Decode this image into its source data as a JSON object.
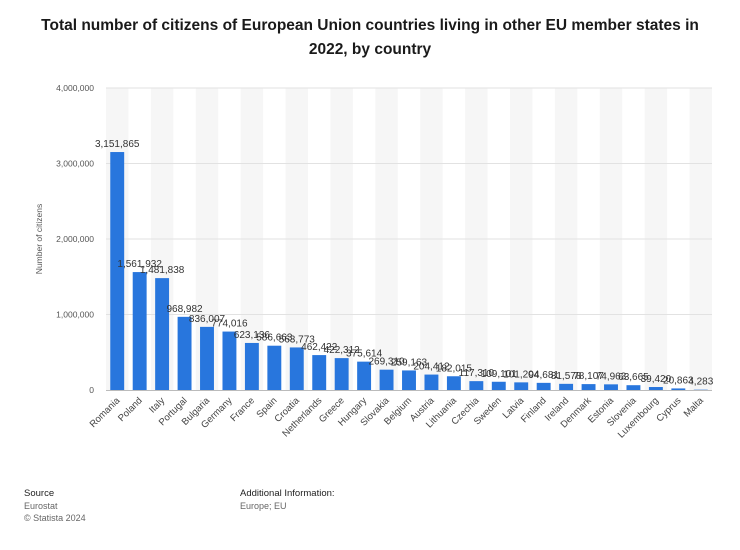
{
  "title": "Total number of citizens of European Union countries living in other EU member states in 2022, by country",
  "chart_data": {
    "type": "bar",
    "title": "Total number of citizens of European Union countries living in other EU member states in 2022, by country",
    "ylabel": "Number of citizens",
    "xlabel": "",
    "ylim": [
      0,
      4000000
    ],
    "yticks": [
      0,
      1000000,
      2000000,
      3000000,
      4000000
    ],
    "ytick_labels": [
      "0",
      "1,000,000",
      "2,000,000",
      "3,000,000",
      "4,000,000"
    ],
    "grid": true,
    "color": "#2876dd",
    "categories": [
      "Romania",
      "Poland",
      "Italy",
      "Portugal",
      "Bulgaria",
      "Germany",
      "France",
      "Spain",
      "Croatia",
      "Netherlands",
      "Greece",
      "Hungary",
      "Slovakia",
      "Belgium",
      "Austria",
      "Lithuania",
      "Czechia",
      "Sweden",
      "Latvia",
      "Finland",
      "Ireland",
      "Denmark",
      "Estonia",
      "Slovenia",
      "Luxembourg",
      "Cyprus",
      "Malta"
    ],
    "values": [
      3151865,
      1561932,
      1481838,
      968982,
      836007,
      774016,
      623136,
      586663,
      563773,
      462422,
      422312,
      375614,
      269310,
      259163,
      204412,
      182015,
      117310,
      109101,
      101204,
      94681,
      81578,
      78107,
      74963,
      63665,
      39420,
      20863,
      4283
    ],
    "value_labels": [
      "3,151,865",
      "1,561,932",
      "1,481,838",
      "968,982",
      "836,007",
      "774,016",
      "623,136",
      "586,663",
      "563,773",
      "462,422",
      "422,312",
      "375,614",
      "269,310",
      "259,163",
      "204,412",
      "182,015",
      "117,310",
      "109,101",
      "101,204",
      "94,681",
      "81,578",
      "78,107",
      "74,963",
      "63,665",
      "39,420",
      "20,863",
      "4,283"
    ]
  },
  "footer": {
    "source_heading": "Source",
    "source_lines": [
      "Eurostat",
      "© Statista 2024"
    ],
    "info_heading": "Additional Information:",
    "info_text": "Europe; EU"
  }
}
